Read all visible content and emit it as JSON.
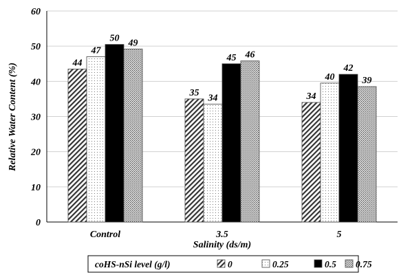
{
  "chart_data": {
    "type": "bar",
    "title": "",
    "xlabel": "Salinity (ds/m)",
    "ylabel": "Relative Water Content (%)",
    "ylim": [
      0,
      60
    ],
    "yticks": [
      0,
      10,
      20,
      30,
      40,
      50,
      60
    ],
    "grid": "horizontal",
    "categories": [
      "Control",
      "3.5",
      "5"
    ],
    "legend_title": "coHS-nSi level (g/l)",
    "legend_position": "bottom",
    "series": [
      {
        "name": "0",
        "pattern": "diagonal-hatch",
        "values": [
          43.5,
          35,
          34
        ],
        "labels": [
          "44",
          "35",
          "34"
        ]
      },
      {
        "name": "0.25",
        "pattern": "sparse-dots",
        "values": [
          47,
          33.5,
          39.5
        ],
        "labels": [
          "47",
          "34",
          "40"
        ]
      },
      {
        "name": "0.5",
        "pattern": "solid-black",
        "values": [
          50.5,
          45,
          42
        ],
        "labels": [
          "50",
          "45",
          "42"
        ]
      },
      {
        "name": "0.75",
        "pattern": "dense-dots",
        "values": [
          49.2,
          45.8,
          38.5
        ],
        "labels": [
          "49",
          "46",
          "39"
        ]
      }
    ]
  }
}
